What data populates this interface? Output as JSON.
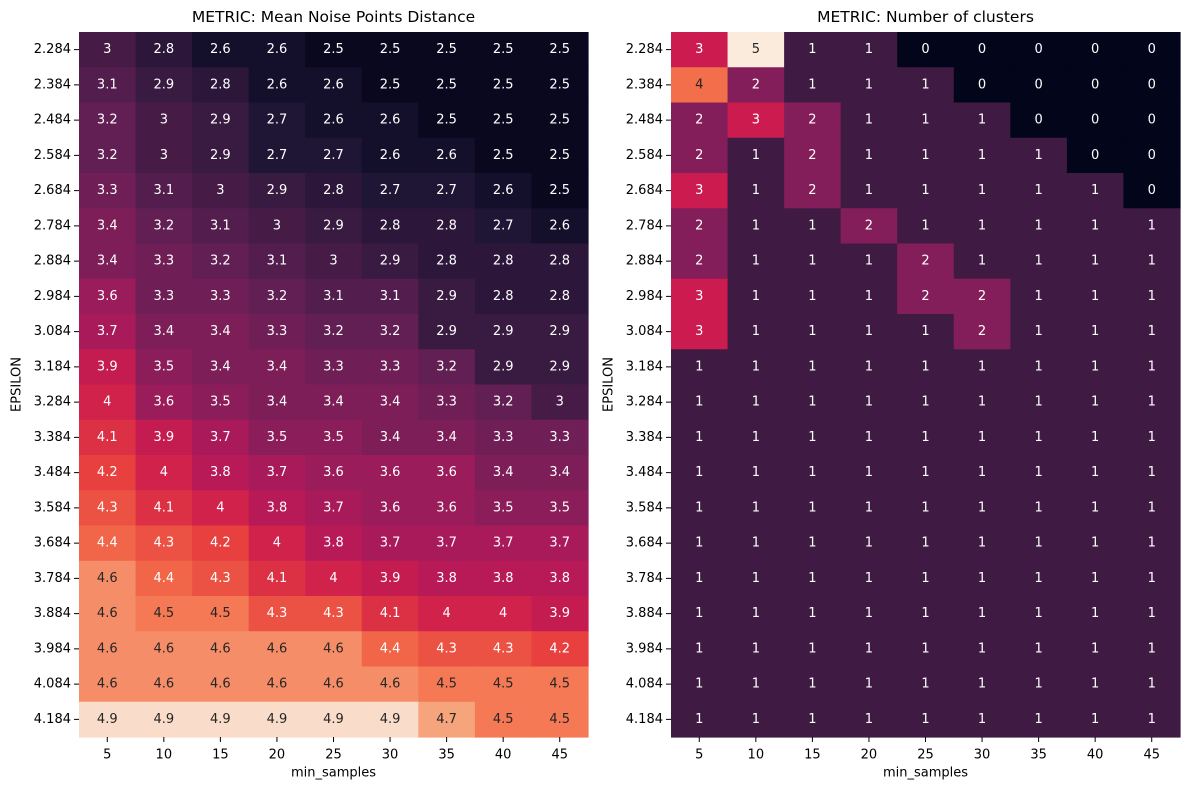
{
  "chart_data": [
    {
      "type": "heatmap",
      "title": "METRIC: Mean Noise Points Distance",
      "xlabel": "min_samples",
      "ylabel": "EPSILON",
      "x": [
        "5",
        "10",
        "15",
        "20",
        "25",
        "30",
        "35",
        "40",
        "45"
      ],
      "y": [
        "2.284",
        "2.384",
        "2.484",
        "2.584",
        "2.684",
        "2.784",
        "2.884",
        "2.984",
        "3.084",
        "3.184",
        "3.284",
        "3.384",
        "3.484",
        "3.584",
        "3.684",
        "3.784",
        "3.884",
        "3.984",
        "4.084",
        "4.184"
      ],
      "values": [
        [
          "3",
          "2.8",
          "2.6",
          "2.6",
          "2.5",
          "2.5",
          "2.5",
          "2.5",
          "2.5"
        ],
        [
          "3.1",
          "2.9",
          "2.8",
          "2.6",
          "2.6",
          "2.5",
          "2.5",
          "2.5",
          "2.5"
        ],
        [
          "3.2",
          "3",
          "2.9",
          "2.7",
          "2.6",
          "2.6",
          "2.5",
          "2.5",
          "2.5"
        ],
        [
          "3.2",
          "3",
          "2.9",
          "2.7",
          "2.7",
          "2.6",
          "2.6",
          "2.5",
          "2.5"
        ],
        [
          "3.3",
          "3.1",
          "3",
          "2.9",
          "2.8",
          "2.7",
          "2.7",
          "2.6",
          "2.5"
        ],
        [
          "3.4",
          "3.2",
          "3.1",
          "3",
          "2.9",
          "2.8",
          "2.8",
          "2.7",
          "2.6"
        ],
        [
          "3.4",
          "3.3",
          "3.2",
          "3.1",
          "3",
          "2.9",
          "2.8",
          "2.8",
          "2.8"
        ],
        [
          "3.6",
          "3.3",
          "3.3",
          "3.2",
          "3.1",
          "3.1",
          "2.9",
          "2.8",
          "2.8"
        ],
        [
          "3.7",
          "3.4",
          "3.4",
          "3.3",
          "3.2",
          "3.2",
          "2.9",
          "2.9",
          "2.9"
        ],
        [
          "3.9",
          "3.5",
          "3.4",
          "3.4",
          "3.3",
          "3.3",
          "3.2",
          "2.9",
          "2.9"
        ],
        [
          "4",
          "3.6",
          "3.5",
          "3.4",
          "3.4",
          "3.4",
          "3.3",
          "3.2",
          "3"
        ],
        [
          "4.1",
          "3.9",
          "3.7",
          "3.5",
          "3.5",
          "3.4",
          "3.4",
          "3.3",
          "3.3"
        ],
        [
          "4.2",
          "4",
          "3.8",
          "3.7",
          "3.6",
          "3.6",
          "3.6",
          "3.4",
          "3.4"
        ],
        [
          "4.3",
          "4.1",
          "4",
          "3.8",
          "3.7",
          "3.6",
          "3.6",
          "3.5",
          "3.5"
        ],
        [
          "4.4",
          "4.3",
          "4.2",
          "4",
          "3.8",
          "3.7",
          "3.7",
          "3.7",
          "3.7"
        ],
        [
          "4.6",
          "4.4",
          "4.3",
          "4.1",
          "4",
          "3.9",
          "3.8",
          "3.8",
          "3.8"
        ],
        [
          "4.6",
          "4.5",
          "4.5",
          "4.3",
          "4.3",
          "4.1",
          "4",
          "4",
          "3.9"
        ],
        [
          "4.6",
          "4.6",
          "4.6",
          "4.6",
          "4.6",
          "4.4",
          "4.3",
          "4.3",
          "4.2"
        ],
        [
          "4.6",
          "4.6",
          "4.6",
          "4.6",
          "4.6",
          "4.6",
          "4.5",
          "4.5",
          "4.5"
        ],
        [
          "4.9",
          "4.9",
          "4.9",
          "4.9",
          "4.9",
          "4.9",
          "4.7",
          "4.5",
          "4.5"
        ]
      ],
      "value_range": [
        2.45,
        4.95
      ],
      "colormap": "rocket",
      "grid": false,
      "colorbar": false
    },
    {
      "type": "heatmap",
      "title": "METRIC: Number of clusters",
      "xlabel": "min_samples",
      "ylabel": "EPSILON",
      "x": [
        "5",
        "10",
        "15",
        "20",
        "25",
        "30",
        "35",
        "40",
        "45"
      ],
      "y": [
        "2.284",
        "2.384",
        "2.484",
        "2.584",
        "2.684",
        "2.784",
        "2.884",
        "2.984",
        "3.084",
        "3.184",
        "3.284",
        "3.384",
        "3.484",
        "3.584",
        "3.684",
        "3.784",
        "3.884",
        "3.984",
        "4.084",
        "4.184"
      ],
      "values": [
        [
          "3",
          "5",
          "1",
          "1",
          "0",
          "0",
          "0",
          "0",
          "0"
        ],
        [
          "4",
          "2",
          "1",
          "1",
          "1",
          "0",
          "0",
          "0",
          "0"
        ],
        [
          "2",
          "3",
          "2",
          "1",
          "1",
          "1",
          "0",
          "0",
          "0"
        ],
        [
          "2",
          "1",
          "2",
          "1",
          "1",
          "1",
          "1",
          "0",
          "0"
        ],
        [
          "3",
          "1",
          "2",
          "1",
          "1",
          "1",
          "1",
          "1",
          "0"
        ],
        [
          "2",
          "1",
          "1",
          "2",
          "1",
          "1",
          "1",
          "1",
          "1"
        ],
        [
          "2",
          "1",
          "1",
          "1",
          "2",
          "1",
          "1",
          "1",
          "1"
        ],
        [
          "3",
          "1",
          "1",
          "1",
          "2",
          "2",
          "1",
          "1",
          "1"
        ],
        [
          "3",
          "1",
          "1",
          "1",
          "1",
          "2",
          "1",
          "1",
          "1"
        ],
        [
          "1",
          "1",
          "1",
          "1",
          "1",
          "1",
          "1",
          "1",
          "1"
        ],
        [
          "1",
          "1",
          "1",
          "1",
          "1",
          "1",
          "1",
          "1",
          "1"
        ],
        [
          "1",
          "1",
          "1",
          "1",
          "1",
          "1",
          "1",
          "1",
          "1"
        ],
        [
          "1",
          "1",
          "1",
          "1",
          "1",
          "1",
          "1",
          "1",
          "1"
        ],
        [
          "1",
          "1",
          "1",
          "1",
          "1",
          "1",
          "1",
          "1",
          "1"
        ],
        [
          "1",
          "1",
          "1",
          "1",
          "1",
          "1",
          "1",
          "1",
          "1"
        ],
        [
          "1",
          "1",
          "1",
          "1",
          "1",
          "1",
          "1",
          "1",
          "1"
        ],
        [
          "1",
          "1",
          "1",
          "1",
          "1",
          "1",
          "1",
          "1",
          "1"
        ],
        [
          "1",
          "1",
          "1",
          "1",
          "1",
          "1",
          "1",
          "1",
          "1"
        ],
        [
          "1",
          "1",
          "1",
          "1",
          "1",
          "1",
          "1",
          "1",
          "1"
        ],
        [
          "1",
          "1",
          "1",
          "1",
          "1",
          "1",
          "1",
          "1",
          "1"
        ]
      ],
      "value_range": [
        0,
        5
      ],
      "colormap": "rocket",
      "grid": false,
      "colorbar": false
    }
  ],
  "colors": {
    "background": "#ffffff",
    "axis_text": "#000000",
    "text_on_dark": "#ffffff",
    "text_on_light": "#262626"
  },
  "colormap_stops": [
    [
      0.0,
      "#03051a"
    ],
    [
      0.1,
      "#1f1534"
    ],
    [
      0.2,
      "#3f1b44"
    ],
    [
      0.3,
      "#611f53"
    ],
    [
      0.4,
      "#841e5a"
    ],
    [
      0.5,
      "#a91a5a"
    ],
    [
      0.6,
      "#cb1b4f"
    ],
    [
      0.7,
      "#e83f3f"
    ],
    [
      0.8,
      "#f36e4a"
    ],
    [
      0.9,
      "#f6a47c"
    ],
    [
      1.0,
      "#faebdd"
    ]
  ]
}
